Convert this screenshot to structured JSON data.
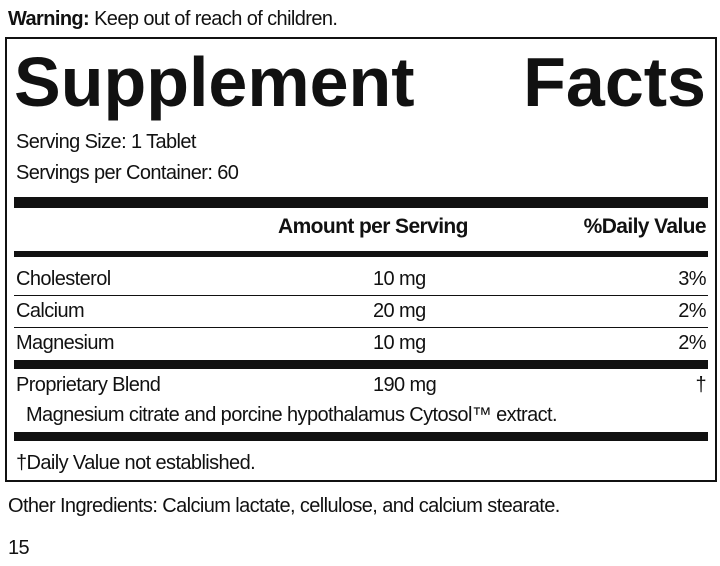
{
  "warning": {
    "label": "Warning:",
    "text": " Keep out of reach of children."
  },
  "title": [
    "Supplement",
    "Facts"
  ],
  "serving_size": "Serving Size: 1 Tablet",
  "servings_per_container": "Servings per Container: 60",
  "headers": {
    "amount": "Amount per Serving",
    "dv": "%Daily Value"
  },
  "rows": [
    {
      "name": "Cholesterol",
      "amount": "10 mg",
      "dv": "3%"
    },
    {
      "name": "Calcium",
      "amount": "20 mg",
      "dv": "2%"
    },
    {
      "name": "Magnesium",
      "amount": "10 mg",
      "dv": "2%"
    },
    {
      "name": "Proprietary Blend",
      "amount": "190 mg",
      "dv": "†"
    }
  ],
  "blend_description": "Magnesium citrate and porcine hypothalamus Cytosol™ extract.",
  "footnote": "†Daily Value not established.",
  "other_ingredients": "Other Ingredients: Calcium lactate, cellulose, and calcium stearate.",
  "page_number": "15"
}
